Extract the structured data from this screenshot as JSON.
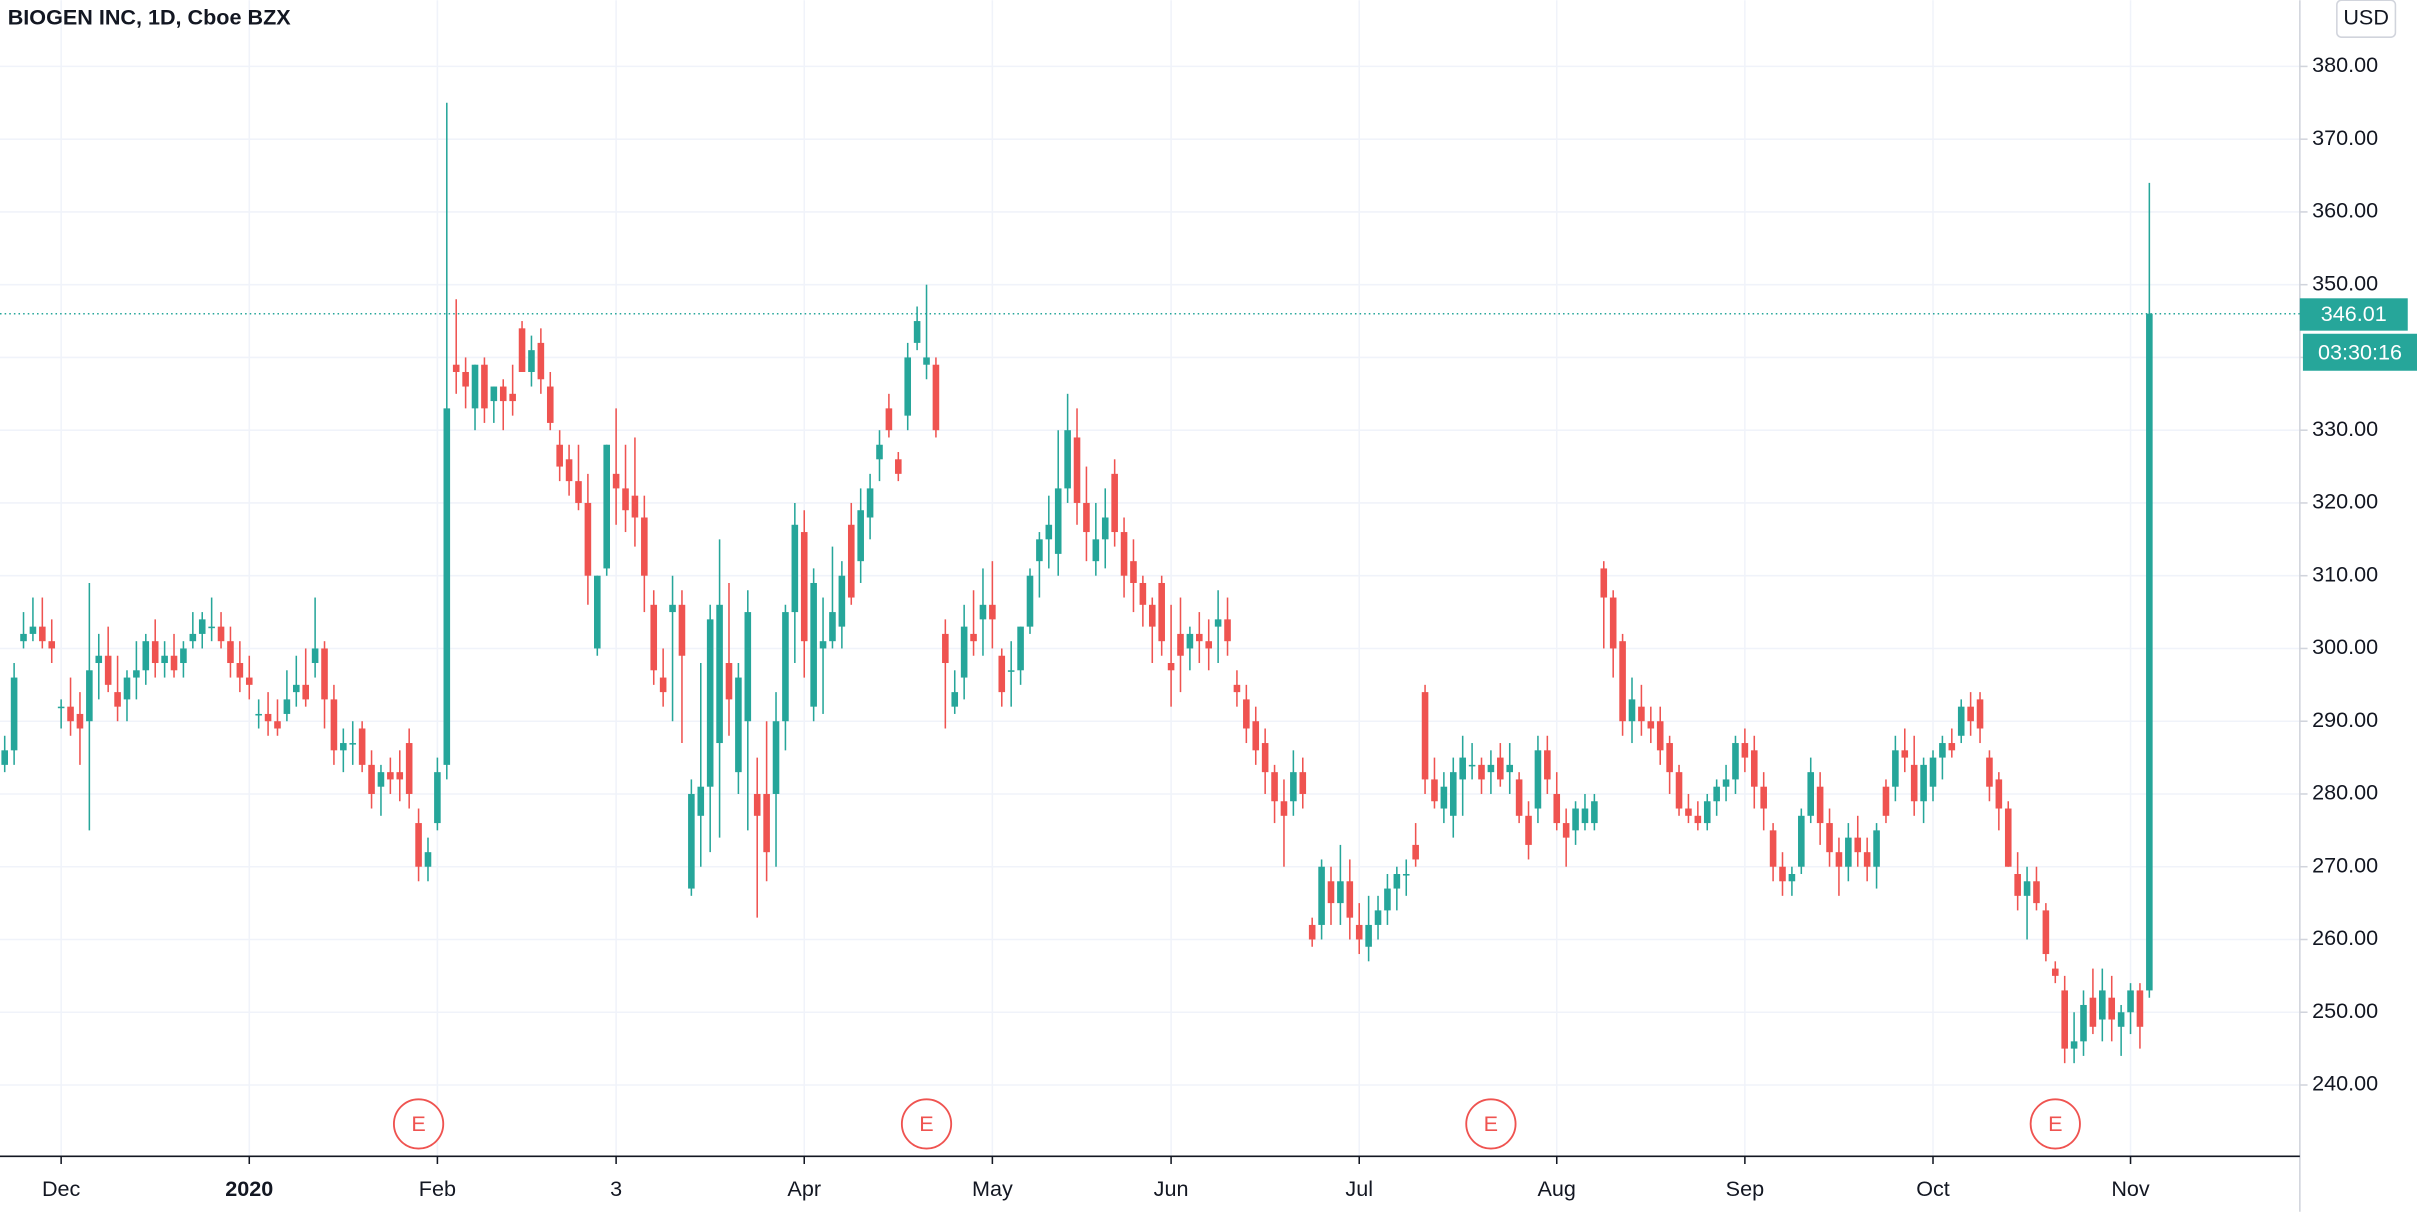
{
  "chart_data": {
    "type": "candlestick",
    "title": "BIOGEN INC, 1D, Cboe BZX",
    "currency": "USD",
    "countdown": "03:30:16",
    "up_color": "#26a69a",
    "down_color": "#ef5350",
    "grid": true,
    "ylim": [
      230.2,
      389.1
    ],
    "yticks": [
      {
        "value": 240,
        "label": "240.00"
      },
      {
        "value": 250,
        "label": "250.00"
      },
      {
        "value": 260,
        "label": "260.00"
      },
      {
        "value": 270,
        "label": "270.00"
      },
      {
        "value": 280,
        "label": "280.00"
      },
      {
        "value": 290,
        "label": "290.00"
      },
      {
        "value": 300,
        "label": "300.00"
      },
      {
        "value": 310,
        "label": "310.00"
      },
      {
        "value": 320,
        "label": "320.00"
      },
      {
        "value": 330,
        "label": "330.00"
      },
      {
        "value": 340,
        "label": "340.00"
      },
      {
        "value": 350,
        "label": "350.00"
      },
      {
        "value": 360,
        "label": "360.00"
      },
      {
        "value": 370,
        "label": "370.00"
      },
      {
        "value": 380,
        "label": "380.00"
      }
    ],
    "xlim": [
      -0.5,
      244
    ],
    "xticks": [
      {
        "value": 6,
        "label": "Dec"
      },
      {
        "value": 26,
        "label": "2020"
      },
      {
        "value": 46,
        "label": "Feb"
      },
      {
        "value": 65,
        "label": "3"
      },
      {
        "value": 85,
        "label": "Apr"
      },
      {
        "value": 105,
        "label": "May"
      },
      {
        "value": 124,
        "label": "Jun"
      },
      {
        "value": 144,
        "label": "Jul"
      },
      {
        "value": 165,
        "label": "Aug"
      },
      {
        "value": 185,
        "label": "Sep"
      },
      {
        "value": 205,
        "label": "Oct"
      },
      {
        "value": 226,
        "label": "Nov"
      }
    ],
    "earnings": [
      {
        "label": "E",
        "x": 44
      },
      {
        "label": "E",
        "x": 98
      },
      {
        "label": "E",
        "x": 158
      },
      {
        "label": "E",
        "x": 218
      }
    ],
    "ohlc": [
      [
        284,
        288,
        283,
        286
      ],
      [
        286,
        298,
        284,
        296
      ],
      [
        301,
        305,
        300,
        302
      ],
      [
        302,
        307,
        301,
        303
      ],
      [
        303,
        307,
        300,
        301
      ],
      [
        301,
        304,
        298,
        300
      ],
      [
        292,
        293,
        289,
        292
      ],
      [
        292,
        296,
        288,
        290
      ],
      [
        291,
        294,
        284,
        289
      ],
      [
        290,
        309,
        275,
        297
      ],
      [
        298,
        302,
        293,
        299
      ],
      [
        299,
        303,
        294,
        295
      ],
      [
        294,
        299,
        290,
        292
      ],
      [
        293,
        297,
        290,
        296
      ],
      [
        296,
        301,
        293,
        297
      ],
      [
        297,
        302,
        295,
        301
      ],
      [
        301,
        304,
        296,
        298
      ],
      [
        298,
        301,
        296,
        299
      ],
      [
        299,
        302,
        296,
        297
      ],
      [
        298,
        301,
        296,
        300
      ],
      [
        301,
        305,
        300,
        302
      ],
      [
        302,
        305,
        300,
        304
      ],
      [
        303,
        307,
        301,
        303
      ],
      [
        303,
        305,
        300,
        301
      ],
      [
        301,
        303,
        296,
        298
      ],
      [
        298,
        301,
        294,
        296
      ],
      [
        296,
        299,
        293,
        295
      ],
      [
        291,
        293,
        289,
        291
      ],
      [
        291,
        294,
        288,
        290
      ],
      [
        290,
        293,
        288,
        289
      ],
      [
        291,
        297,
        290,
        293
      ],
      [
        294,
        299,
        292,
        295
      ],
      [
        295,
        300,
        292,
        293
      ],
      [
        298,
        307,
        296,
        300
      ],
      [
        300,
        301,
        289,
        293
      ],
      [
        293,
        295,
        284,
        286
      ],
      [
        286,
        289,
        283,
        287
      ],
      [
        287,
        290,
        284,
        287
      ],
      [
        289,
        290,
        283,
        284
      ],
      [
        284,
        286,
        278,
        280
      ],
      [
        281,
        284,
        277,
        283
      ],
      [
        283,
        285,
        280,
        282
      ],
      [
        283,
        286,
        279,
        282
      ],
      [
        287,
        289,
        278,
        280
      ],
      [
        276,
        278,
        268,
        270
      ],
      [
        270,
        274,
        268,
        272
      ],
      [
        276,
        285,
        275,
        283
      ],
      [
        284,
        375,
        282,
        333
      ],
      [
        339,
        348,
        335,
        338
      ],
      [
        338,
        340,
        333,
        336
      ],
      [
        333,
        339,
        330,
        339
      ],
      [
        339,
        340,
        331,
        333
      ],
      [
        334,
        336,
        331,
        336
      ],
      [
        336,
        337,
        330,
        334
      ],
      [
        335,
        339,
        332,
        334
      ],
      [
        344,
        345,
        338,
        338
      ],
      [
        338,
        343,
        336,
        341
      ],
      [
        342,
        344,
        335,
        337
      ],
      [
        336,
        338,
        330,
        331
      ],
      [
        328,
        330,
        323,
        325
      ],
      [
        326,
        328,
        321,
        323
      ],
      [
        323,
        328,
        319,
        320
      ],
      [
        320,
        324,
        306,
        310
      ],
      [
        300,
        310,
        299,
        310
      ],
      [
        311,
        328,
        310,
        328
      ],
      [
        324,
        333,
        317,
        322
      ],
      [
        322,
        328,
        316,
        319
      ],
      [
        321,
        329,
        314,
        318
      ],
      [
        318,
        321,
        305,
        310
      ],
      [
        306,
        308,
        295,
        297
      ],
      [
        296,
        300,
        292,
        294
      ],
      [
        305,
        310,
        290,
        306
      ],
      [
        306,
        308,
        287,
        299
      ],
      [
        267,
        282,
        266,
        280
      ],
      [
        277,
        298,
        270,
        281
      ],
      [
        281,
        306,
        272,
        304
      ],
      [
        287,
        315,
        274,
        306
      ],
      [
        298,
        309,
        288,
        293
      ],
      [
        283,
        298,
        280,
        296
      ],
      [
        290,
        308,
        275,
        305
      ],
      [
        280,
        285,
        263,
        277
      ],
      [
        280,
        290,
        268,
        272
      ],
      [
        280,
        294,
        270,
        290
      ],
      [
        290,
        306,
        286,
        305
      ],
      [
        305,
        320,
        298,
        317
      ],
      [
        316,
        319,
        296,
        301
      ],
      [
        292,
        311,
        290,
        309
      ],
      [
        300,
        307,
        291,
        301
      ],
      [
        301,
        314,
        300,
        305
      ],
      [
        303,
        312,
        300,
        310
      ],
      [
        317,
        320,
        306,
        307
      ],
      [
        312,
        322,
        309,
        319
      ],
      [
        318,
        324,
        315,
        322
      ],
      [
        326,
        330,
        323,
        328
      ],
      [
        333,
        335,
        329,
        330
      ],
      [
        326,
        327,
        323,
        324
      ],
      [
        332,
        342,
        330,
        340
      ],
      [
        342,
        347,
        341,
        345
      ],
      [
        339,
        350,
        337,
        340
      ],
      [
        339,
        340,
        329,
        330
      ],
      [
        302,
        304,
        289,
        298
      ],
      [
        292,
        297,
        291,
        294
      ],
      [
        296,
        306,
        293,
        303
      ],
      [
        302,
        308,
        299,
        301
      ],
      [
        304,
        311,
        299,
        306
      ],
      [
        306,
        312,
        300,
        304
      ],
      [
        299,
        300,
        292,
        294
      ],
      [
        297,
        301,
        292,
        297
      ],
      [
        297,
        303,
        295,
        303
      ],
      [
        303,
        311,
        302,
        310
      ],
      [
        312,
        316,
        307,
        315
      ],
      [
        315,
        321,
        311,
        317
      ],
      [
        313,
        330,
        310,
        322
      ],
      [
        322,
        335,
        320,
        330
      ],
      [
        329,
        333,
        317,
        320
      ],
      [
        320,
        325,
        312,
        316
      ],
      [
        312,
        320,
        310,
        315
      ],
      [
        315,
        322,
        311,
        318
      ],
      [
        324,
        326,
        314,
        316
      ],
      [
        316,
        318,
        307,
        310
      ],
      [
        312,
        315,
        305,
        309
      ],
      [
        309,
        310,
        303,
        306
      ],
      [
        306,
        307,
        298,
        303
      ],
      [
        309,
        310,
        299,
        301
      ],
      [
        298,
        306,
        292,
        297
      ],
      [
        302,
        307,
        294,
        299
      ],
      [
        300,
        303,
        297,
        302
      ],
      [
        302,
        305,
        298,
        301
      ],
      [
        301,
        304,
        297,
        300
      ],
      [
        303,
        308,
        298,
        304
      ],
      [
        304,
        307,
        299,
        301
      ],
      [
        295,
        297,
        292,
        294
      ],
      [
        293,
        295,
        287,
        289
      ],
      [
        290,
        292,
        284,
        286
      ],
      [
        287,
        289,
        280,
        283
      ],
      [
        283,
        284,
        276,
        279
      ],
      [
        279,
        282,
        270,
        277
      ],
      [
        279,
        286,
        277,
        283
      ],
      [
        283,
        285,
        278,
        280
      ],
      [
        262,
        263,
        259,
        260
      ],
      [
        262,
        271,
        260,
        270
      ],
      [
        268,
        270,
        262,
        265
      ],
      [
        265,
        273,
        262,
        268
      ],
      [
        268,
        271,
        260,
        263
      ],
      [
        262,
        265,
        258,
        260
      ],
      [
        259,
        266,
        257,
        262
      ],
      [
        262,
        266,
        260,
        264
      ],
      [
        264,
        269,
        262,
        267
      ],
      [
        267,
        270,
        264,
        269
      ],
      [
        269,
        271,
        266,
        269
      ],
      [
        273,
        276,
        270,
        271
      ],
      [
        294,
        295,
        280,
        282
      ],
      [
        282,
        285,
        278,
        279
      ],
      [
        278,
        283,
        276,
        281
      ],
      [
        277,
        285,
        274,
        283
      ],
      [
        282,
        288,
        277,
        285
      ],
      [
        284,
        287,
        282,
        284
      ],
      [
        284,
        285,
        280,
        282
      ],
      [
        283,
        286,
        280,
        284
      ],
      [
        285,
        287,
        281,
        282
      ],
      [
        283,
        287,
        280,
        284
      ],
      [
        282,
        283,
        276,
        277
      ],
      [
        277,
        279,
        271,
        273
      ],
      [
        278,
        288,
        276,
        286
      ],
      [
        286,
        288,
        280,
        282
      ],
      [
        280,
        283,
        275,
        276
      ],
      [
        276,
        278,
        270,
        274
      ],
      [
        275,
        279,
        273,
        278
      ],
      [
        276,
        280,
        275,
        278
      ],
      [
        276,
        280,
        275,
        279
      ],
      [
        311,
        312,
        300,
        307
      ],
      [
        307,
        308,
        296,
        300
      ],
      [
        301,
        302,
        288,
        290
      ],
      [
        290,
        296,
        287,
        293
      ],
      [
        292,
        295,
        288,
        290
      ],
      [
        290,
        292,
        287,
        289
      ],
      [
        290,
        292,
        284,
        286
      ],
      [
        287,
        288,
        280,
        283
      ],
      [
        283,
        284,
        277,
        278
      ],
      [
        278,
        280,
        276,
        277
      ],
      [
        277,
        279,
        275,
        276
      ],
      [
        276,
        280,
        275,
        279
      ],
      [
        279,
        282,
        277,
        281
      ],
      [
        281,
        284,
        279,
        282
      ],
      [
        282,
        288,
        280,
        287
      ],
      [
        287,
        289,
        283,
        285
      ],
      [
        286,
        288,
        278,
        281
      ],
      [
        281,
        283,
        275,
        278
      ],
      [
        275,
        276,
        268,
        270
      ],
      [
        270,
        272,
        266,
        268
      ],
      [
        268,
        270,
        266,
        269
      ],
      [
        270,
        278,
        269,
        277
      ],
      [
        277,
        285,
        276,
        283
      ],
      [
        281,
        283,
        273,
        276
      ],
      [
        276,
        278,
        270,
        272
      ],
      [
        272,
        274,
        266,
        270
      ],
      [
        270,
        276,
        268,
        274
      ],
      [
        274,
        277,
        270,
        272
      ],
      [
        272,
        274,
        268,
        270
      ],
      [
        270,
        276,
        267,
        275
      ],
      [
        281,
        282,
        276,
        277
      ],
      [
        281,
        288,
        279,
        286
      ],
      [
        286,
        289,
        283,
        285
      ],
      [
        284,
        288,
        277,
        279
      ],
      [
        279,
        285,
        276,
        284
      ],
      [
        281,
        286,
        279,
        285
      ],
      [
        285,
        288,
        282,
        287
      ],
      [
        287,
        289,
        285,
        286
      ],
      [
        288,
        293,
        287,
        292
      ],
      [
        292,
        294,
        288,
        290
      ],
      [
        293,
        294,
        287,
        289
      ],
      [
        285,
        286,
        279,
        281
      ],
      [
        282,
        283,
        275,
        278
      ],
      [
        278,
        279,
        270,
        270
      ],
      [
        269,
        272,
        264,
        266
      ],
      [
        266,
        270,
        260,
        268
      ],
      [
        268,
        270,
        264,
        265
      ],
      [
        264,
        265,
        257,
        258
      ],
      [
        256,
        257,
        254,
        255
      ],
      [
        253,
        255,
        243,
        245
      ],
      [
        245,
        250,
        243,
        246
      ],
      [
        246,
        253,
        244,
        251
      ],
      [
        252,
        256,
        247,
        248
      ],
      [
        249,
        256,
        246,
        253
      ],
      [
        252,
        255,
        246,
        249
      ],
      [
        248,
        251,
        244,
        250
      ],
      [
        250,
        254,
        247,
        253
      ],
      [
        253,
        254,
        245,
        248
      ],
      [
        253,
        364,
        252,
        346.01
      ]
    ]
  }
}
